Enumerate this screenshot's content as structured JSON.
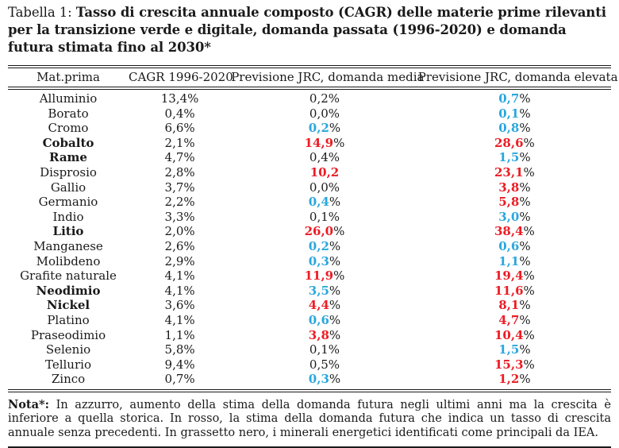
{
  "caption": {
    "label": "Tabella 1:",
    "title": "Tasso di crescita annuale composto (CAGR) delle materie prime rilevanti per la transizione verde e digitale, domanda passata (1996-2020) e domanda futura stimata fino al 2030*"
  },
  "colors": {
    "red": "#ec1c24",
    "blue": "#2aa7de",
    "text": "#1a1a1a",
    "rule": "#1a1a1a"
  },
  "table": {
    "columns": [
      "Mat.prima",
      "CAGR 1996-2020",
      "Previsione JRC, domanda media",
      "Previsione JRC, domanda elevata"
    ],
    "rows": [
      {
        "name": "Alluminio",
        "bold": false,
        "cagr": "13,4%",
        "media": {
          "num": "0,2",
          "pct": "%",
          "color": "black"
        },
        "elevata": {
          "num": "0,7",
          "pct": "%",
          "color": "blue"
        }
      },
      {
        "name": "Borato",
        "bold": false,
        "cagr": "0,4%",
        "media": {
          "num": "0,0",
          "pct": "%",
          "color": "black"
        },
        "elevata": {
          "num": "0,1",
          "pct": "%",
          "color": "blue"
        }
      },
      {
        "name": "Cromo",
        "bold": false,
        "cagr": "6,6%",
        "media": {
          "num": "0,2",
          "pct": "%",
          "color": "blue"
        },
        "elevata": {
          "num": "0,8",
          "pct": "%",
          "color": "blue"
        }
      },
      {
        "name": "Cobalto",
        "bold": true,
        "cagr": "2,1%",
        "media": {
          "num": "14,9",
          "pct": "%",
          "color": "red"
        },
        "elevata": {
          "num": "28,6",
          "pct": "%",
          "color": "red"
        }
      },
      {
        "name": "Rame",
        "bold": true,
        "cagr": "4,7%",
        "media": {
          "num": "0,4",
          "pct": "%",
          "color": "black"
        },
        "elevata": {
          "num": "1,5",
          "pct": "%",
          "color": "blue"
        }
      },
      {
        "name": "Disprosio",
        "bold": false,
        "cagr": "2,8%",
        "media": {
          "num": "10,2",
          "pct": "",
          "color": "red"
        },
        "elevata": {
          "num": "23,1",
          "pct": "%",
          "color": "red"
        }
      },
      {
        "name": "Gallio",
        "bold": false,
        "cagr": "3,7%",
        "media": {
          "num": "0,0",
          "pct": "%",
          "color": "black"
        },
        "elevata": {
          "num": "3,8",
          "pct": "%",
          "color": "red"
        }
      },
      {
        "name": "Germanio",
        "bold": false,
        "cagr": "2,2%",
        "media": {
          "num": "0,4",
          "pct": "%",
          "color": "blue"
        },
        "elevata": {
          "num": "5,8",
          "pct": "%",
          "color": "red"
        }
      },
      {
        "name": "Indio",
        "bold": false,
        "cagr": "3,3%",
        "media": {
          "num": "0,1",
          "pct": "%",
          "color": "black"
        },
        "elevata": {
          "num": "3,0",
          "pct": "%",
          "color": "blue"
        }
      },
      {
        "name": "Litio",
        "bold": true,
        "cagr": "2,0%",
        "media": {
          "num": "26,0",
          "pct": "%",
          "color": "red"
        },
        "elevata": {
          "num": "38,4",
          "pct": "%",
          "color": "red"
        }
      },
      {
        "name": "Manganese",
        "bold": false,
        "cagr": "2,6%",
        "media": {
          "num": "0,2",
          "pct": "%",
          "color": "blue"
        },
        "elevata": {
          "num": "0,6",
          "pct": "%",
          "color": "blue"
        }
      },
      {
        "name": "Molibdeno",
        "bold": false,
        "cagr": "2,9%",
        "media": {
          "num": "0,3",
          "pct": "%",
          "color": "blue"
        },
        "elevata": {
          "num": "1,1",
          "pct": "%",
          "color": "blue"
        }
      },
      {
        "name": "Grafite naturale",
        "bold": false,
        "cagr": "4,1%",
        "media": {
          "num": "11,9",
          "pct": "%",
          "color": "red"
        },
        "elevata": {
          "num": "19,4",
          "pct": "%",
          "color": "red"
        }
      },
      {
        "name": "Neodimio",
        "bold": true,
        "cagr": "4,1%",
        "media": {
          "num": "3,5",
          "pct": "%",
          "color": "blue"
        },
        "elevata": {
          "num": "11,6",
          "pct": "%",
          "color": "red"
        }
      },
      {
        "name": "Nickel",
        "bold": true,
        "cagr": "3,6%",
        "media": {
          "num": "4,4",
          "pct": "%",
          "color": "red"
        },
        "elevata": {
          "num": "8,1",
          "pct": "%",
          "color": "red"
        }
      },
      {
        "name": "Platino",
        "bold": false,
        "cagr": "4,1%",
        "media": {
          "num": "0,6",
          "pct": "%",
          "color": "blue"
        },
        "elevata": {
          "num": "4,7",
          "pct": "%",
          "color": "red"
        }
      },
      {
        "name": "Praseodimio",
        "bold": false,
        "cagr": "1,1%",
        "media": {
          "num": "3,8",
          "pct": "%",
          "color": "red"
        },
        "elevata": {
          "num": "10,4",
          "pct": "%",
          "color": "red"
        }
      },
      {
        "name": "Selenio",
        "bold": false,
        "cagr": "5,8%",
        "media": {
          "num": "0,1",
          "pct": "%",
          "color": "black"
        },
        "elevata": {
          "num": "1,5",
          "pct": "%",
          "color": "blue"
        }
      },
      {
        "name": "Tellurio",
        "bold": false,
        "cagr": "9,4%",
        "media": {
          "num": "0,5",
          "pct": "%",
          "color": "black"
        },
        "elevata": {
          "num": "15,3",
          "pct": "%",
          "color": "red"
        }
      },
      {
        "name": "Zinco",
        "bold": false,
        "cagr": "0,7%",
        "media": {
          "num": "0,3",
          "pct": "%",
          "color": "blue"
        },
        "elevata": {
          "num": "1,2",
          "pct": "%",
          "color": "red"
        }
      }
    ]
  },
  "note": {
    "label": "Nota*:",
    "text": "In azzurro, aumento della stima della domanda futura negli ultimi anni ma la crescita è inferiore a quella storica. In rosso, la stima della domanda futura che indica un tasso di crescita annuale senza precedenti. In grassetto nero, i minerali energetici identificati come principali da IEA."
  }
}
